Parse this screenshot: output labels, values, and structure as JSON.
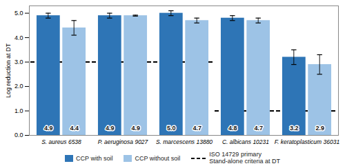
{
  "chart_data": {
    "type": "bar",
    "categories": [
      "S. aureus 6538",
      "P. aeruginosa 9027",
      "S. marcescens 13880",
      "C. albicans 10231",
      "F. keratoplasticum 36031"
    ],
    "series": [
      {
        "name": "CCP with soil",
        "color": "#2E75B6",
        "values": [
          4.9,
          4.9,
          5.0,
          4.8,
          3.2
        ],
        "value_labels": [
          "4.9",
          "4.9",
          "5.0",
          "4.8",
          "3.2"
        ],
        "error": [
          0.1,
          0.1,
          0.1,
          0.1,
          0.3
        ]
      },
      {
        "name": "CCP without soil",
        "color": "#9DC3E6",
        "values": [
          4.4,
          4.9,
          4.7,
          4.7,
          2.9
        ],
        "value_labels": [
          "4.4",
          "4.9",
          "4.7",
          "4.7",
          "2.9"
        ],
        "error": [
          0.3,
          0.02,
          0.1,
          0.1,
          0.4
        ]
      }
    ],
    "reference_lines": {
      "name": "ISO 14729 primary\nStand-alone criteria at DT",
      "values": [
        3,
        3,
        3,
        1,
        1
      ],
      "line_style": "dashed",
      "color": "#000000"
    },
    "ylabel": "Log reduction at DT",
    "ylim": [
      0,
      5.3
    ],
    "yticks": [
      {
        "value": 0,
        "label": "0.0"
      },
      {
        "value": 1,
        "label": "1.0"
      },
      {
        "value": 2,
        "label": "2.0"
      },
      {
        "value": 3,
        "label": "3.0"
      },
      {
        "value": 4,
        "label": "4.0"
      },
      {
        "value": 5,
        "label": "5.0"
      }
    ],
    "data_labels": true,
    "grid": false,
    "legend": "bottom"
  }
}
